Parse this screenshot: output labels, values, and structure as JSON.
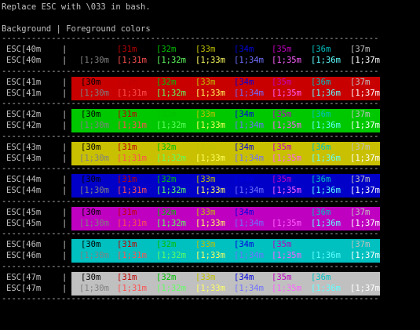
{
  "title": "Replace ESC with \\033 in bash.",
  "header": "Background | Foreground colors",
  "divider": "-------------------------------------------------------------------------------------------------------------",
  "pipe": "|",
  "fg_codes_normal": [
    "[30m",
    "[31m",
    "[32m",
    "[33m",
    "[34m",
    "[35m",
    "[36m",
    "[37m"
  ],
  "fg_codes_bold": [
    "[1;30m",
    "[1;31m",
    "[1;32m",
    "[1;33m",
    "[1;34m",
    "[1;35m",
    "[1;36m",
    "[1;37m"
  ],
  "fg_colors_normal": [
    "#000000",
    "#c00000",
    "#00c000",
    "#c0c000",
    "#0000e0",
    "#c000c0",
    "#00c0c0",
    "#c0c0c0"
  ],
  "fg_colors_bold": [
    "#808080",
    "#ff5050",
    "#60ff60",
    "#ffff60",
    "#7070ff",
    "#ff60ff",
    "#60ffff",
    "#ffffff"
  ],
  "rows": [
    {
      "label_a": "ESC[40m",
      "label_b": "ESC[40m",
      "bg": "#000000"
    },
    {
      "label_a": "ESC[41m",
      "label_b": "ESC[41m",
      "bg": "#c80000"
    },
    {
      "label_a": "ESC[42m",
      "label_b": "ESC[42m",
      "bg": "#00c800"
    },
    {
      "label_a": "ESC[43m",
      "label_b": "ESC[43m",
      "bg": "#c8c000"
    },
    {
      "label_a": "ESC[44m",
      "label_b": "ESC[44m",
      "bg": "#0000c8"
    },
    {
      "label_a": "ESC[45m",
      "label_b": "ESC[45m",
      "bg": "#c000c0"
    },
    {
      "label_a": "ESC[46m",
      "label_b": "ESC[46m",
      "bg": "#00c0c0"
    },
    {
      "label_a": "ESC[47m",
      "label_b": "ESC[47m",
      "bg": "#c0c0c0"
    }
  ]
}
